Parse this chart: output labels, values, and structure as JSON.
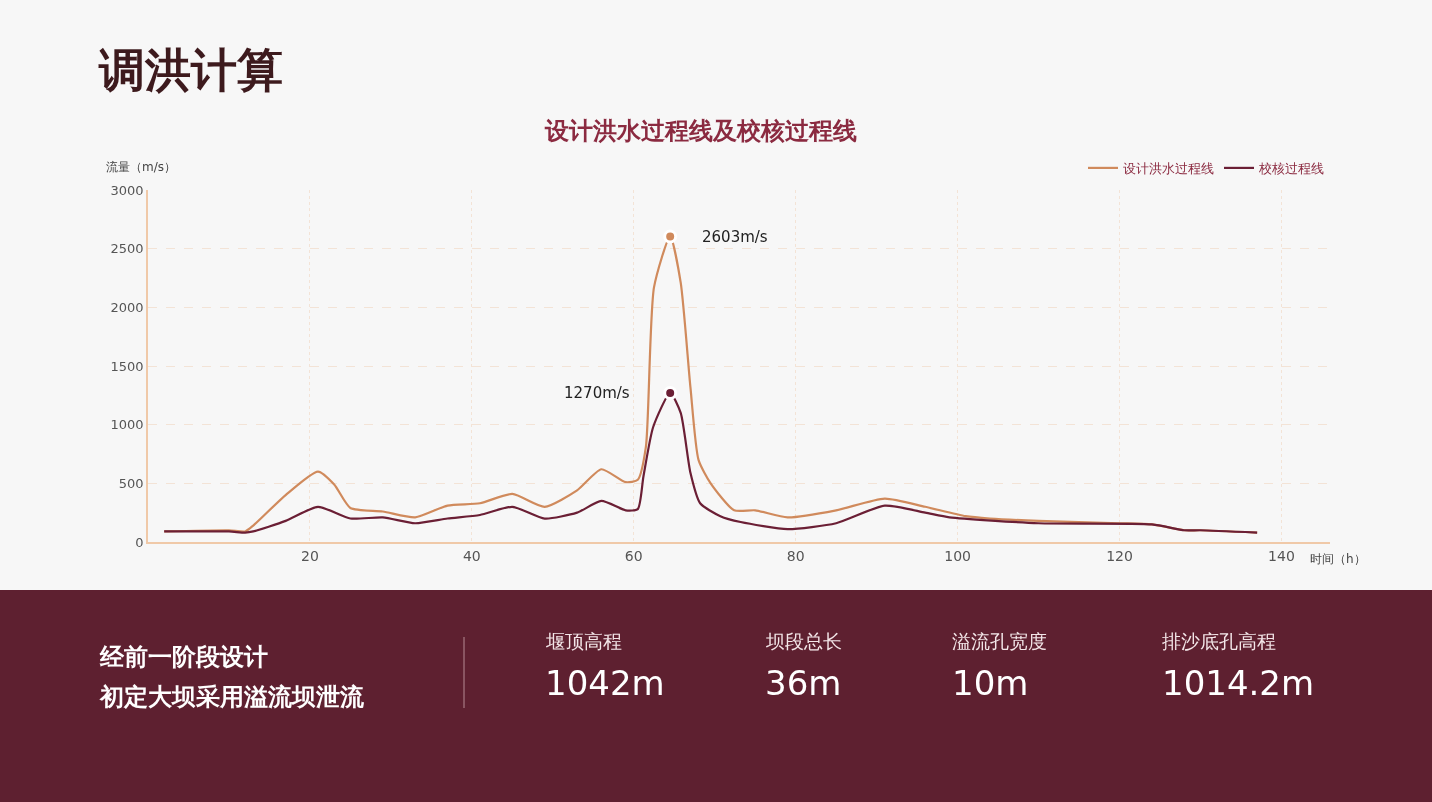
{
  "chart_data": {
    "type": "line",
    "title": "调洪计算",
    "subtitle": "设计洪水过程线及校核过程线",
    "xlabel": "时间（h）",
    "ylabel": "流量（m/s）",
    "series": [
      {
        "name": "设计洪水过程线",
        "color": "#d08a5c",
        "x": [
          2,
          10,
          12,
          13,
          17,
          21,
          23,
          25,
          29,
          33,
          37,
          41,
          45,
          49,
          53,
          56,
          59,
          60.5,
          61.5,
          62.5,
          64.5,
          65.8,
          67,
          68,
          69.5,
          72.4,
          75,
          79,
          85,
          91,
          96,
          101,
          104,
          110,
          120,
          124,
          128,
          130,
          137
        ],
        "values": [
          90,
          100,
          90,
          140,
          400,
          600,
          490,
          290,
          260,
          210,
          310,
          330,
          410,
          300,
          440,
          620,
          510,
          530,
          810,
          2170,
          2603,
          2210,
          1320,
          700,
          500,
          270,
          270,
          210,
          270,
          370,
          300,
          220,
          200,
          180,
          160,
          150,
          100,
          100,
          80
        ]
      },
      {
        "name": "校核过程线",
        "color": "#6b1f35",
        "x": [
          2,
          10,
          12,
          13,
          17,
          21,
          25,
          29,
          33,
          37,
          41,
          45,
          49,
          53,
          56,
          59,
          60.5,
          61.2,
          62.4,
          64.5,
          65.8,
          67,
          68.2,
          70.7,
          73.2,
          79,
          85,
          91,
          96,
          99,
          110,
          124,
          128,
          130,
          137
        ],
        "values": [
          90,
          90,
          80,
          90,
          180,
          300,
          200,
          210,
          160,
          200,
          230,
          300,
          200,
          250,
          350,
          270,
          280,
          560,
          980,
          1270,
          1100,
          590,
          330,
          220,
          170,
          110,
          160,
          310,
          250,
          210,
          160,
          150,
          100,
          100,
          80
        ]
      }
    ],
    "xlim": [
      0,
      146
    ],
    "xticks": [
      20,
      40,
      60,
      80,
      100,
      120,
      140
    ],
    "ylim": [
      0,
      3000
    ],
    "yticks": [
      0,
      500,
      1000,
      1500,
      2000,
      2500,
      3000
    ],
    "grid": true,
    "legend": "top right",
    "line_style": "solid",
    "annotations": [
      {
        "text": "2603m/s",
        "x": 64.5,
        "y": 2603
      },
      {
        "text": "1270m/s",
        "x": 64.5,
        "y": 1270
      },
      "经前一阶段设计",
      "初定大坝采用溢流坝泄流",
      "堰顶高程",
      "1042m",
      "坝段总长",
      "36m",
      "溢流孔宽度",
      "10m",
      "排沙底孔高程",
      "1014.2m"
    ]
  }
}
